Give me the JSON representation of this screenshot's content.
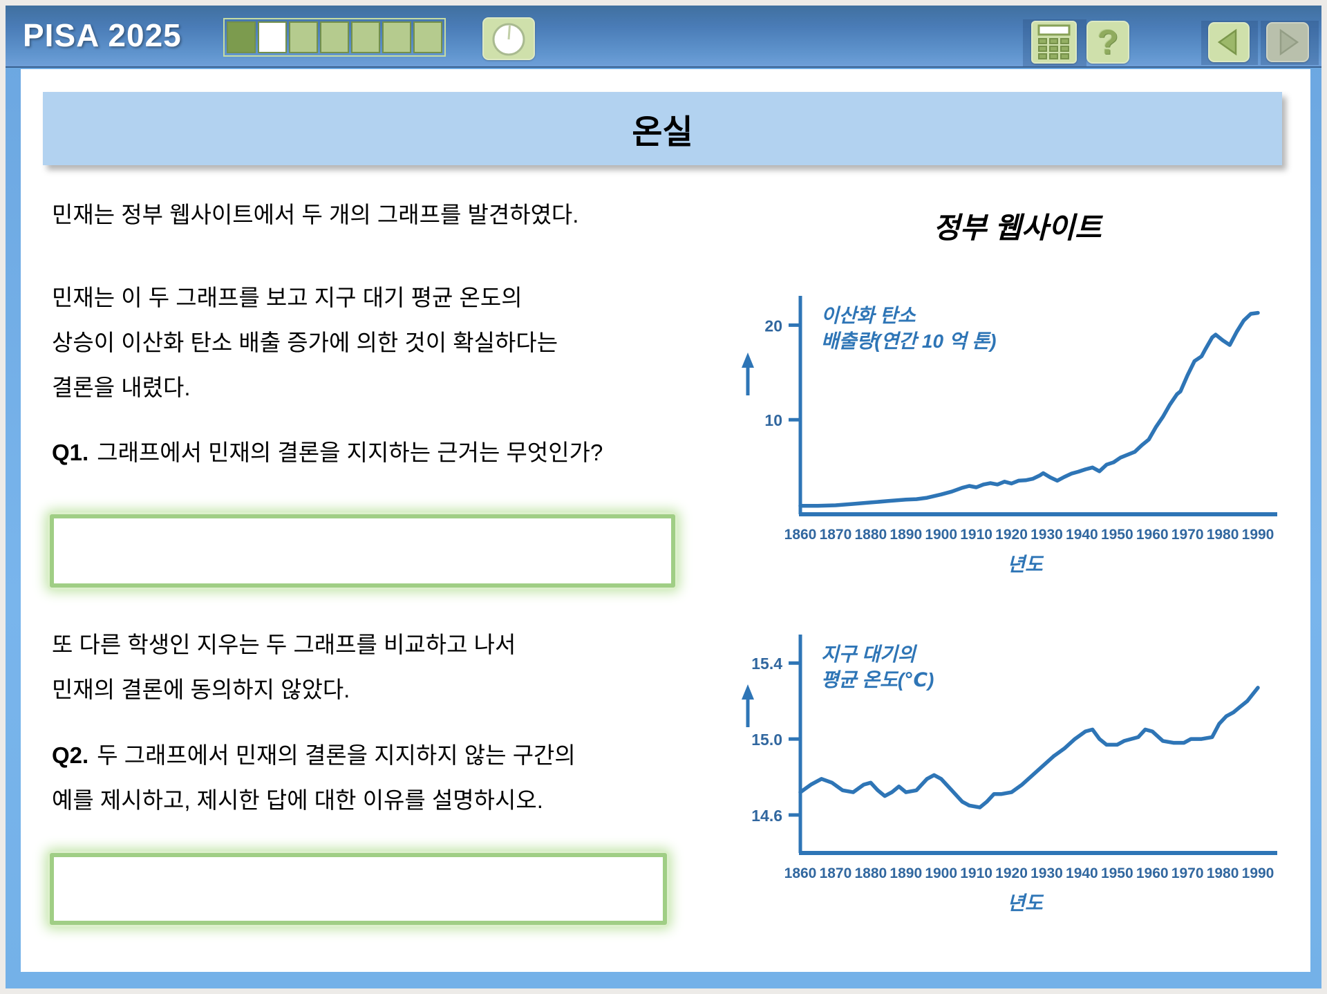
{
  "header": {
    "app_title": "PISA 2025",
    "progress": {
      "total": 7,
      "states": [
        "done",
        "current",
        "todo",
        "todo",
        "todo",
        "todo",
        "todo"
      ]
    },
    "timer_button": {
      "icon": "stopwatch-icon"
    },
    "calculator_button": {
      "icon": "calculator-icon"
    },
    "help_button": {
      "icon": "question-mark-icon",
      "glyph": "?"
    },
    "back_button": {
      "icon": "arrow-left-icon",
      "enabled": true
    },
    "forward_button": {
      "icon": "arrow-right-icon",
      "enabled": false
    }
  },
  "title_bar": {
    "title": "온실"
  },
  "stimulus": {
    "para1": "민재는 정부 웹사이트에서 두 개의 그래프를 발견하였다.",
    "para2_lines": [
      "민재는 이 두 그래프를 보고 지구 대기 평균 온도의",
      "상승이 이산화 탄소 배출 증가에 의한 것이 확실하다는",
      "결론을 내렸다."
    ],
    "q1": {
      "label": "Q1.",
      "text": "그래프에서 민재의 결론을 지지하는 근거는 무엇인가?",
      "answer_value": ""
    },
    "para3_lines": [
      "또 다른 학생인 지우는 두 그래프를 비교하고 나서",
      "민재의 결론에 동의하지 않았다."
    ],
    "q2": {
      "label": "Q2.",
      "lines": [
        "두 그래프에서 민재의 결론을 지지하지 않는 구간의",
        "예를 제시하고, 제시한 답에 대한 이유를 설명하시오."
      ],
      "answer_value": ""
    }
  },
  "panel": {
    "heading": "정부 웹사이트"
  },
  "colors": {
    "chart_line": "#2e75b6",
    "title_bar_bg": "#b2d2f0",
    "answer_border": "#a0ce85",
    "progress_done": "#7c9b4e",
    "progress_todo": "#b5cb8e",
    "button_green": "#cfe0ab"
  },
  "chart_data": [
    {
      "type": "line",
      "title_lines": [
        "이산화 탄소",
        "배출량(연간 10 억 톤)"
      ],
      "xlabel": "년도",
      "line_color": "#2e75b6",
      "x_ticks": [
        1860,
        1870,
        1880,
        1890,
        1900,
        1910,
        1920,
        1930,
        1940,
        1950,
        1960,
        1970,
        1980,
        1990
      ],
      "y_ticks": [
        10,
        20
      ],
      "y_tick_labels": [
        "10",
        "20"
      ],
      "ylim": [
        0,
        23.1
      ],
      "xlim": [
        1860,
        1990
      ],
      "series": [
        {
          "name": "이산화 탄소 배출량",
          "points": [
            [
              1860,
              0.9
            ],
            [
              1865,
              0.9
            ],
            [
              1870,
              0.95
            ],
            [
              1875,
              1.1
            ],
            [
              1880,
              1.25
            ],
            [
              1885,
              1.4
            ],
            [
              1890,
              1.55
            ],
            [
              1893,
              1.6
            ],
            [
              1896,
              1.75
            ],
            [
              1900,
              2.1
            ],
            [
              1903,
              2.4
            ],
            [
              1906,
              2.8
            ],
            [
              1908,
              3.0
            ],
            [
              1910,
              2.85
            ],
            [
              1912,
              3.15
            ],
            [
              1914,
              3.3
            ],
            [
              1916,
              3.15
            ],
            [
              1918,
              3.45
            ],
            [
              1920,
              3.25
            ],
            [
              1922,
              3.55
            ],
            [
              1924,
              3.6
            ],
            [
              1926,
              3.75
            ],
            [
              1928,
              4.1
            ],
            [
              1929,
              4.35
            ],
            [
              1931,
              3.9
            ],
            [
              1933,
              3.55
            ],
            [
              1935,
              3.95
            ],
            [
              1937,
              4.3
            ],
            [
              1939,
              4.5
            ],
            [
              1941,
              4.75
            ],
            [
              1943,
              4.95
            ],
            [
              1945,
              4.55
            ],
            [
              1947,
              5.25
            ],
            [
              1949,
              5.5
            ],
            [
              1951,
              6.0
            ],
            [
              1953,
              6.3
            ],
            [
              1955,
              6.6
            ],
            [
              1957,
              7.3
            ],
            [
              1959,
              7.9
            ],
            [
              1961,
              9.2
            ],
            [
              1963,
              10.3
            ],
            [
              1965,
              11.6
            ],
            [
              1967,
              12.7
            ],
            [
              1968,
              13.0
            ],
            [
              1970,
              14.7
            ],
            [
              1972,
              16.2
            ],
            [
              1974,
              16.7
            ],
            [
              1975,
              17.4
            ],
            [
              1977,
              18.7
            ],
            [
              1978,
              19.0
            ],
            [
              1980,
              18.4
            ],
            [
              1982,
              17.9
            ],
            [
              1984,
              19.3
            ],
            [
              1986,
              20.5
            ],
            [
              1988,
              21.2
            ],
            [
              1990,
              21.3
            ]
          ]
        }
      ]
    },
    {
      "type": "line",
      "title_lines": [
        "지구 대기의",
        "평균 온도(℃)"
      ],
      "xlabel": "년도",
      "line_color": "#2e75b6",
      "x_ticks": [
        1860,
        1870,
        1880,
        1890,
        1900,
        1910,
        1920,
        1930,
        1940,
        1950,
        1960,
        1970,
        1980,
        1990
      ],
      "y_ticks": [
        14.6,
        15.0,
        15.4
      ],
      "y_tick_labels": [
        "14.6",
        "15.0",
        "15.4"
      ],
      "ylim": [
        14.4,
        15.55
      ],
      "xlim": [
        1860,
        1990
      ],
      "series": [
        {
          "name": "지구 대기의 평균 온도",
          "points": [
            [
              1860,
              14.72
            ],
            [
              1863,
              14.76
            ],
            [
              1866,
              14.79
            ],
            [
              1869,
              14.77
            ],
            [
              1872,
              14.73
            ],
            [
              1875,
              14.72
            ],
            [
              1878,
              14.76
            ],
            [
              1880,
              14.77
            ],
            [
              1882,
              14.73
            ],
            [
              1884,
              14.7
            ],
            [
              1886,
              14.72
            ],
            [
              1888,
              14.75
            ],
            [
              1890,
              14.72
            ],
            [
              1893,
              14.73
            ],
            [
              1896,
              14.79
            ],
            [
              1898,
              14.81
            ],
            [
              1900,
              14.79
            ],
            [
              1903,
              14.73
            ],
            [
              1906,
              14.67
            ],
            [
              1908,
              14.65
            ],
            [
              1911,
              14.64
            ],
            [
              1913,
              14.67
            ],
            [
              1915,
              14.71
            ],
            [
              1917,
              14.71
            ],
            [
              1920,
              14.72
            ],
            [
              1923,
              14.76
            ],
            [
              1926,
              14.81
            ],
            [
              1929,
              14.86
            ],
            [
              1932,
              14.91
            ],
            [
              1935,
              14.95
            ],
            [
              1938,
              15.0
            ],
            [
              1941,
              15.04
            ],
            [
              1943,
              15.05
            ],
            [
              1945,
              15.0
            ],
            [
              1947,
              14.97
            ],
            [
              1950,
              14.97
            ],
            [
              1952,
              14.99
            ],
            [
              1954,
              15.0
            ],
            [
              1956,
              15.01
            ],
            [
              1958,
              15.05
            ],
            [
              1960,
              15.04
            ],
            [
              1963,
              14.99
            ],
            [
              1966,
              14.98
            ],
            [
              1969,
              14.98
            ],
            [
              1971,
              15.0
            ],
            [
              1974,
              15.0
            ],
            [
              1977,
              15.01
            ],
            [
              1979,
              15.08
            ],
            [
              1981,
              15.12
            ],
            [
              1983,
              15.14
            ],
            [
              1985,
              15.17
            ],
            [
              1987,
              15.2
            ],
            [
              1990,
              15.27
            ]
          ]
        }
      ]
    }
  ]
}
